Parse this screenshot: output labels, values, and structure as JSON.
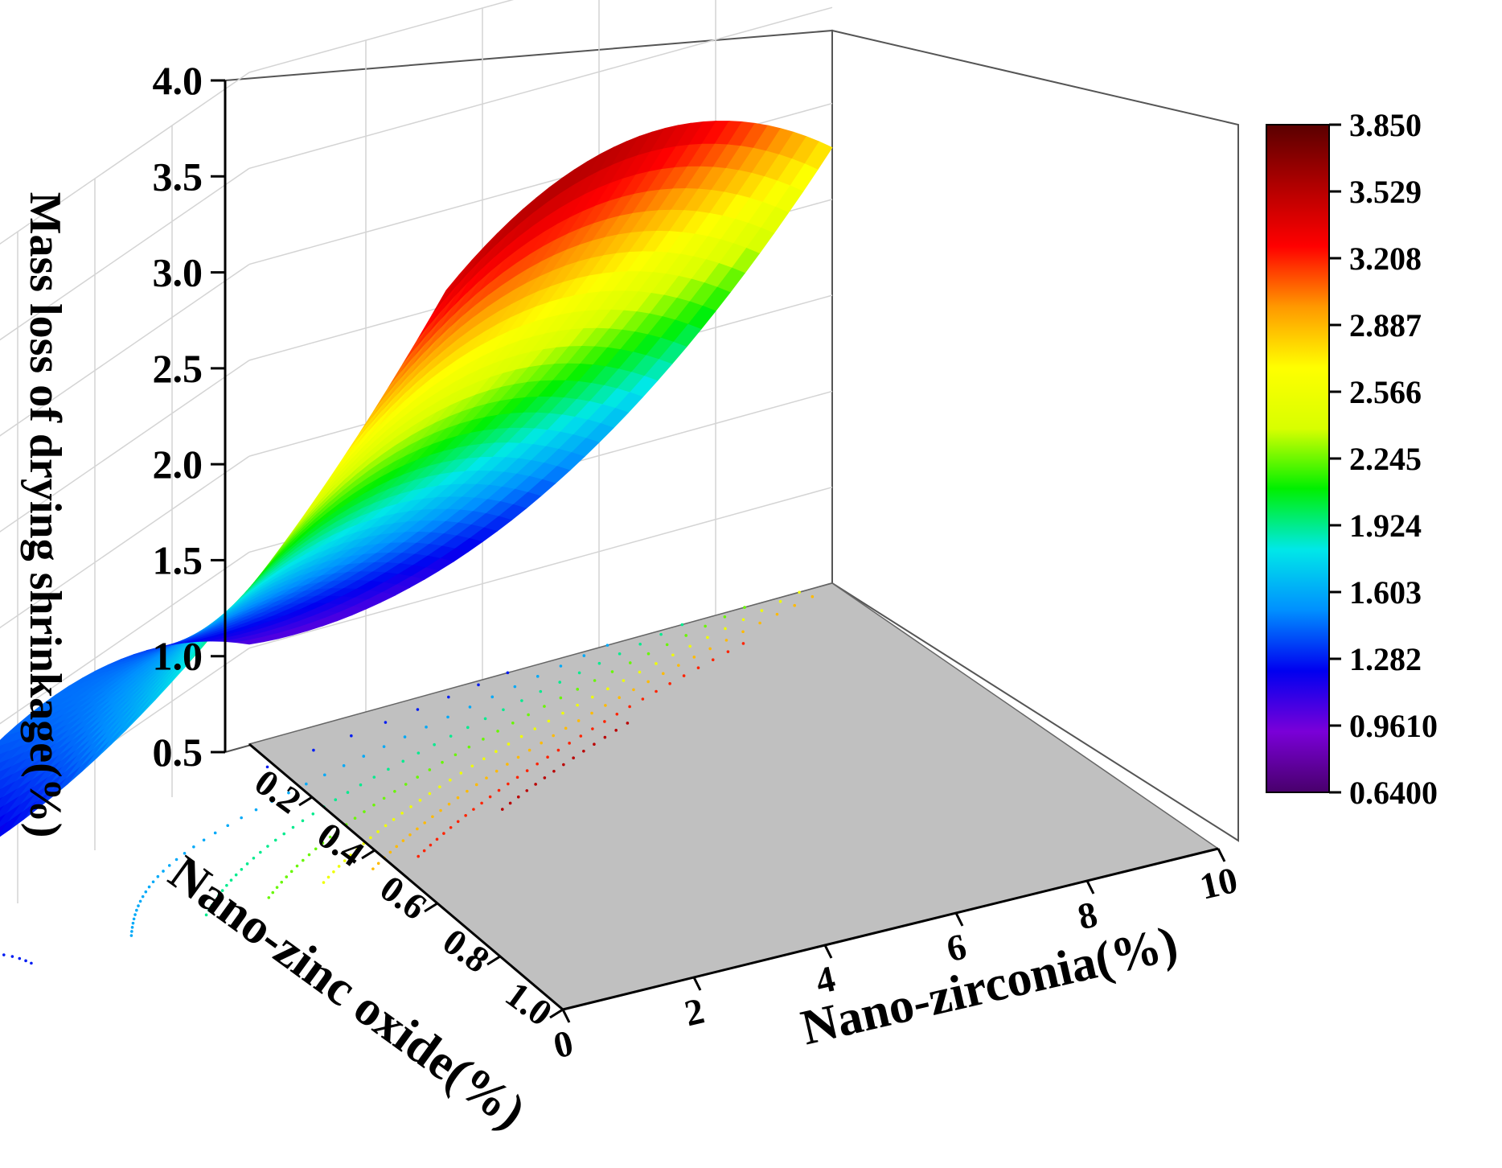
{
  "chart_data": {
    "type": "surface3d",
    "zlabel": "Mass loss of drying shrinkage(%)",
    "xlabel": "Nano-zirconia(%)",
    "ylabel": "Nano-zinc oxide(%)",
    "zlim": [
      0.5,
      4.0
    ],
    "xlim": [
      0,
      10
    ],
    "ylim": [
      0,
      1.0
    ],
    "z_ticks": [
      "0.5",
      "1.0",
      "1.5",
      "2.0",
      "2.5",
      "3.0",
      "3.5",
      "4.0"
    ],
    "x_ticks": [
      "0",
      "2",
      "4",
      "6",
      "8",
      "10"
    ],
    "y_ticks": [
      "0.2",
      "0.4",
      "0.6",
      "0.8",
      "1.0"
    ],
    "colorbar": {
      "ticks": [
        "3.850",
        "3.529",
        "3.208",
        "2.887",
        "2.566",
        "2.245",
        "1.924",
        "1.603",
        "1.282",
        "0.9610",
        "0.6400"
      ],
      "min": 0.64,
      "max": 3.85,
      "colors": [
        "#48006b",
        "#7a00d8",
        "#0000f0",
        "#0090ff",
        "#00e8e8",
        "#00f000",
        "#d8ff00",
        "#ffff00",
        "#ff9900",
        "#ff0000",
        "#b00000",
        "#5a0000"
      ]
    },
    "surface_samples": [
      {
        "x": 0,
        "y": 0,
        "z": 1.02
      },
      {
        "x": 0,
        "y": 0.5,
        "z": 1.45
      },
      {
        "x": 0,
        "y": 1.0,
        "z": 1.05
      },
      {
        "x": 5,
        "y": 0,
        "z": 1.3
      },
      {
        "x": 5,
        "y": 1.0,
        "z": 0.68
      },
      {
        "x": 10,
        "y": 0.5,
        "z": 3.85
      },
      {
        "x": 10,
        "y": 1.0,
        "z": 3.0
      }
    ],
    "grid": true,
    "floor_contours": true,
    "legend_position": "right"
  }
}
